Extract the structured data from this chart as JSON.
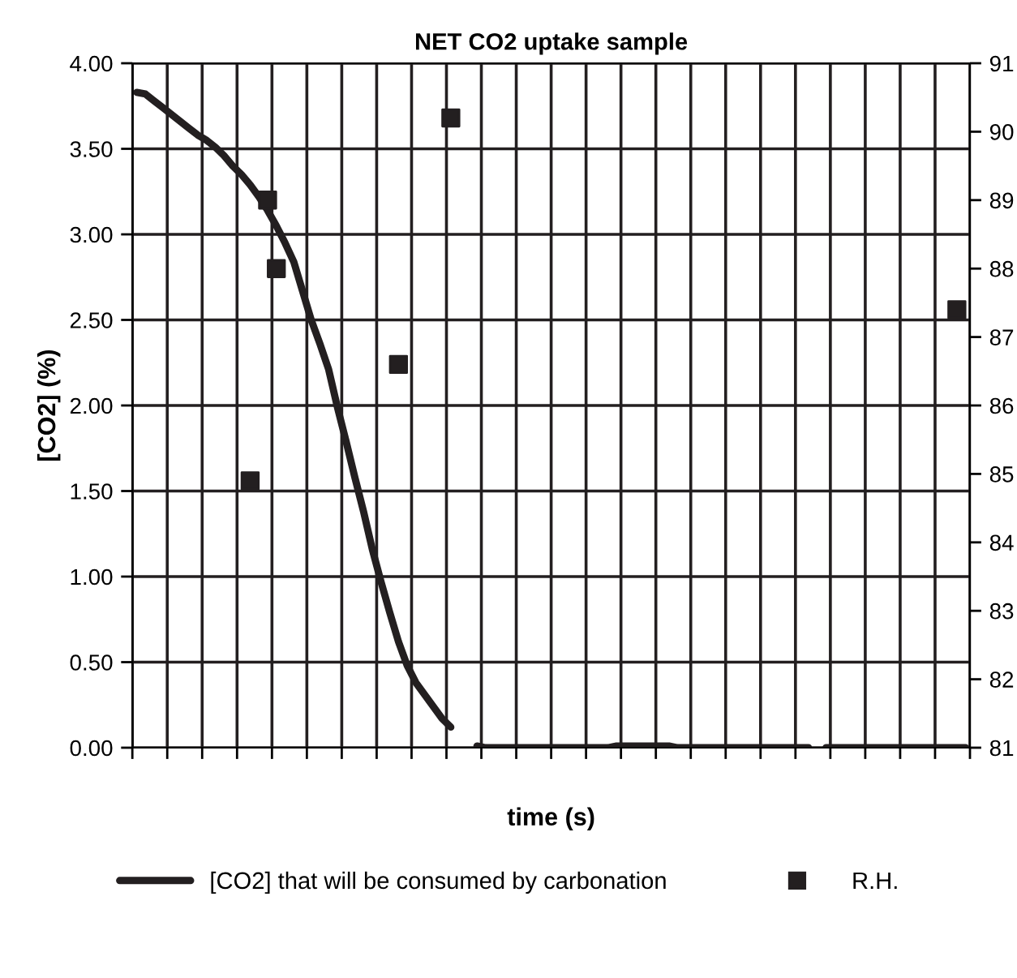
{
  "chart_data": {
    "type": "line",
    "title": "NET CO2 uptake sample",
    "xlabel": "time (s)",
    "ylabel": "[CO2] (%)",
    "categories": [
      null,
      null,
      null,
      null,
      null,
      null,
      null,
      null,
      null,
      null,
      null,
      null,
      null,
      null,
      null,
      null,
      null,
      null,
      null,
      null,
      null,
      null,
      null,
      null,
      null,
      null,
      null,
      null,
      null,
      null,
      null,
      null,
      null,
      null,
      null,
      null,
      null,
      null,
      null,
      null,
      null,
      null,
      null,
      null,
      null,
      null,
      null,
      null,
      null,
      null,
      null,
      null,
      null,
      null,
      null,
      null,
      null,
      null,
      null,
      null,
      null,
      null,
      null,
      null,
      null,
      null,
      null,
      null,
      null,
      null,
      null,
      null,
      null,
      null,
      null,
      null,
      null,
      null,
      null,
      null,
      null,
      null,
      null,
      null,
      null,
      null,
      null,
      null,
      null,
      null,
      null,
      null,
      null,
      null,
      null,
      null
    ],
    "series": [
      {
        "name": "[CO2] that will be consumed by carbonation",
        "color": "#231f20",
        "values": [
          3.83,
          3.82,
          3.78,
          3.74,
          3.7,
          3.66,
          3.62,
          3.58,
          3.55,
          3.51,
          3.46,
          3.4,
          3.35,
          3.29,
          3.22,
          3.14,
          3.05,
          2.95,
          2.84,
          2.67,
          2.5,
          2.36,
          2.21,
          1.99,
          1.79,
          1.58,
          1.38,
          1.16,
          0.97,
          0.79,
          0.62,
          0.48,
          0.38,
          0.31,
          0.24,
          0.17,
          0.12,
          null,
          null,
          0.01,
          0.0,
          0.0,
          0.0,
          0.0,
          0.0,
          0.0,
          0.0,
          0.0,
          0.0,
          0.0,
          0.0,
          0.0,
          0.0,
          0.0,
          0.0,
          0.01,
          0.01,
          0.01,
          0.01,
          0.01,
          0.01,
          0.01,
          0.0,
          0.0,
          0.0,
          0.0,
          0.0,
          0.0,
          0.0,
          0.0,
          0.0,
          0.0,
          0.0,
          0.0,
          0.0,
          0.0,
          0.0,
          0.0,
          null,
          0.0,
          0.0,
          0.0,
          0.0,
          0.0,
          0.0,
          0.0,
          0.0,
          0.0,
          0.0,
          0.0,
          0.0,
          0.0,
          0.0,
          0.0,
          0.0,
          0.0
        ]
      },
      {
        "name": "R.H.",
        "type": "scatter",
        "axis": "y2",
        "marker": "square",
        "color": "#231f20",
        "values": [
          null,
          null,
          null,
          null,
          null,
          null,
          null,
          null,
          null,
          null,
          null,
          null,
          null,
          84.9,
          null,
          89.0,
          88.0,
          null,
          null,
          null,
          null,
          null,
          null,
          null,
          null,
          null,
          null,
          null,
          null,
          null,
          86.6,
          null,
          null,
          null,
          null,
          null,
          90.2,
          null,
          null,
          null,
          null,
          null,
          null,
          null,
          null,
          null,
          null,
          null,
          null,
          null,
          null,
          null,
          null,
          null,
          null,
          null,
          null,
          null,
          null,
          null,
          null,
          null,
          null,
          null,
          null,
          null,
          null,
          null,
          null,
          null,
          null,
          null,
          null,
          null,
          null,
          null,
          null,
          null,
          null,
          null,
          null,
          null,
          null,
          null,
          null,
          null,
          null,
          null,
          null,
          null,
          null,
          null,
          null,
          null,
          87.4,
          null
        ]
      }
    ],
    "ylim": [
      0,
      4
    ],
    "yticks": [
      {
        "value": 0,
        "label": "0.00"
      },
      {
        "value": 0.5,
        "label": "0.50"
      },
      {
        "value": 1,
        "label": "1.00"
      },
      {
        "value": 1.5,
        "label": "1.50"
      },
      {
        "value": 2,
        "label": "2.00"
      },
      {
        "value": 2.5,
        "label": "2.50"
      },
      {
        "value": 3,
        "label": "3.00"
      },
      {
        "value": 3.5,
        "label": "3.50"
      },
      {
        "value": 4,
        "label": "4.00"
      }
    ],
    "y2lim": [
      81,
      91
    ],
    "y2ticks": [
      81,
      82,
      83,
      84,
      85,
      86,
      87,
      88,
      89,
      90,
      91
    ],
    "grid": true,
    "legend": "bottom"
  }
}
